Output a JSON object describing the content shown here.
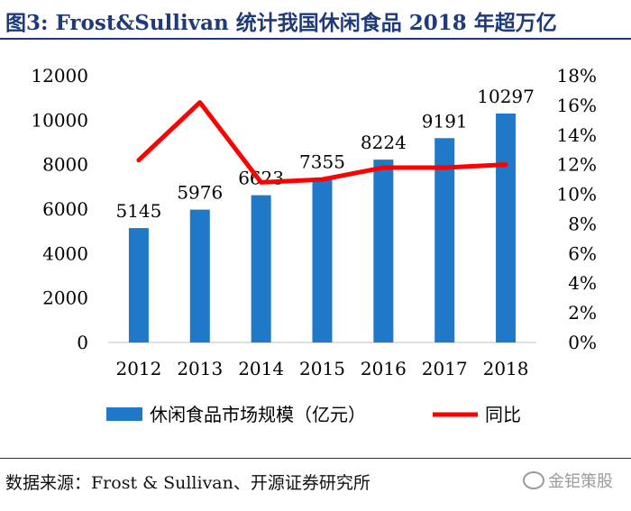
{
  "header": {
    "title": "图3:   Frost&Sullivan 统计我国休闲食品 2018 年超万亿"
  },
  "footer": {
    "source": "数据来源：Frost & Sullivan、开源证券研究所"
  },
  "watermark": {
    "text": "金钜策股",
    "icon": "wechat-icon"
  },
  "colors": {
    "bar": "#1f78c8",
    "line": "#ff0000",
    "title": "#1f3a7a",
    "text": "#000000"
  },
  "chart_data": {
    "type": "bar+line",
    "title": "Frost&Sullivan 统计我国休闲食品 2018 年超万亿",
    "categories": [
      "2012",
      "2013",
      "2014",
      "2015",
      "2016",
      "2017",
      "2018"
    ],
    "series": [
      {
        "name": "休闲食品市场规模（亿元）",
        "type": "bar",
        "axis": "left",
        "values": [
          5145,
          5976,
          6623,
          7355,
          8224,
          9191,
          10297
        ]
      },
      {
        "name": "同比",
        "type": "line",
        "axis": "right",
        "values": [
          12.3,
          16.2,
          10.8,
          11.0,
          11.8,
          11.8,
          12.0
        ]
      }
    ],
    "data_labels": [
      "5145",
      "5976",
      "6623",
      "7355",
      "8224",
      "9191",
      "10297"
    ],
    "y_left": {
      "min": 0,
      "max": 12000,
      "step": 2000,
      "ticks": [
        "0",
        "2000",
        "4000",
        "6000",
        "8000",
        "10000",
        "12000"
      ]
    },
    "y_right": {
      "min": 0,
      "max": 18,
      "step": 2,
      "ticks": [
        "0%",
        "2%",
        "4%",
        "6%",
        "8%",
        "10%",
        "12%",
        "14%",
        "16%",
        "18%"
      ]
    },
    "legend": [
      {
        "label": "休闲食品市场规模（亿元）",
        "kind": "bar"
      },
      {
        "label": "同比",
        "kind": "line"
      }
    ],
    "legend_position": "bottom",
    "grid": false
  }
}
